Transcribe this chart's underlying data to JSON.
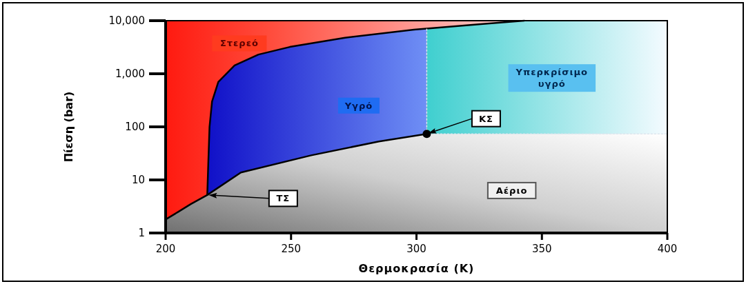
{
  "chart_data": {
    "type": "line",
    "xlabel": "Θερμοκρασία (K)",
    "ylabel": "Πίεση (bar)",
    "xlim": [
      200,
      400
    ],
    "xticks": [
      200,
      250,
      300,
      350,
      400
    ],
    "ylim": [
      1,
      10000
    ],
    "yticks": [
      1,
      10,
      100,
      {
        "value": 1000,
        "label": "1,000"
      },
      {
        "value": 10000,
        "label": "10,000"
      }
    ],
    "log": "y",
    "grid": false,
    "series": [
      {
        "color": "#000000",
        "x": [
          200,
          205,
          210,
          216.6,
          230,
          258,
          285,
          304.1
        ],
        "values": [
          1.8,
          2.5,
          3.5,
          5.2,
          13.8,
          29,
          53,
          73.8
        ]
      },
      {
        "color": "#000000",
        "x": [
          216.6,
          217,
          217.5,
          218.5,
          221,
          227.5,
          237,
          249.5,
          271.5,
          299,
          326.5,
          343
        ],
        "values": [
          5.2,
          20,
          100,
          300,
          700,
          1440,
          2300,
          3200,
          4780,
          6800,
          8700,
          10000
        ]
      },
      {
        "color": "#dde6ee",
        "line_style": "dotted",
        "x": [
          304.1,
          304.1
        ],
        "values": [
          73.8,
          7100
        ]
      },
      {
        "color": "#dde6ee",
        "line_style": "dotted",
        "x": [
          304.1,
          400
        ],
        "values": [
          73.8,
          73.8
        ]
      },
      {
        "type": "scatter",
        "marker": "circle",
        "color": "#000000",
        "x": [
          304.1
        ],
        "values": [
          73.8
        ]
      }
    ],
    "annotations": [
      "Στερεό",
      "Υγρό",
      "Υπερκρίσιμο\nυγρό",
      "Αέριο",
      {
        "text": "ΤΣ",
        "x": 216.6,
        "y": 5.2
      },
      {
        "text": "ΚΣ",
        "x": 304.1,
        "y": 73.8
      }
    ]
  }
}
